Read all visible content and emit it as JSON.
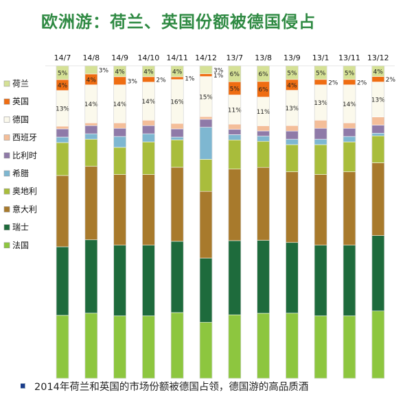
{
  "title": "欧洲游：荷兰、英国份额被德国侵占",
  "footer": {
    "bullet_icon": "square-bullet-icon",
    "text": "2014年荷兰和英国的市场份额被德国占领，德国游的高品质酒"
  },
  "chart_data": {
    "type": "bar",
    "stacked": true,
    "percent_stacked": true,
    "categories": [
      "14/7",
      "14/8",
      "14/9",
      "14/10",
      "14/11",
      "14/12",
      "13/7",
      "13/8",
      "13/9",
      "13/1",
      "13/11",
      "13/12"
    ],
    "legend_position": "left",
    "series": [
      {
        "name": "法国",
        "color": "#8dc63f",
        "values": [
          23,
          24,
          23,
          23,
          24,
          21,
          24,
          25,
          24,
          23,
          23,
          25
        ]
      },
      {
        "name": "瑞士",
        "color": "#1e6b3c",
        "values": [
          25,
          27,
          26,
          26,
          26,
          24,
          28,
          28,
          26,
          26,
          26,
          28
        ]
      },
      {
        "name": "意大利",
        "color": "#a87a2c",
        "values": [
          26,
          27,
          26,
          26,
          27,
          25,
          27,
          28,
          26,
          26,
          27,
          27
        ]
      },
      {
        "name": "奥地利",
        "color": "#a9bd3c",
        "values": [
          12,
          10,
          10,
          12,
          10,
          12,
          11,
          10,
          10,
          11,
          11,
          10
        ]
      },
      {
        "name": "希腊",
        "color": "#7eb7d1",
        "values": [
          2,
          2,
          4,
          3,
          1,
          12,
          2,
          2,
          2,
          2,
          2,
          1
        ]
      },
      {
        "name": "比利时",
        "color": "#8f7aa8",
        "values": [
          3,
          3,
          3,
          3,
          3,
          3,
          2,
          2,
          3,
          4,
          3,
          3
        ]
      },
      {
        "name": "西班牙",
        "color": "#f4be99",
        "values": [
          1,
          1,
          2,
          2,
          2,
          1,
          2,
          2,
          2,
          3,
          2,
          3
        ]
      },
      {
        "name": "德国",
        "color": "#fbf9ec",
        "values": [
          13,
          14,
          14,
          14,
          16,
          15,
          11,
          11,
          13,
          13,
          14,
          13
        ]
      },
      {
        "name": "英国",
        "color": "#ef6d12",
        "values": [
          4,
          4,
          3,
          2,
          1,
          1,
          5,
          6,
          4,
          2,
          2,
          2
        ]
      },
      {
        "name": "荷兰",
        "color": "#d5e196",
        "values": [
          5,
          3,
          4,
          4,
          4,
          3,
          6,
          6,
          5,
          5,
          5,
          4
        ]
      }
    ],
    "data_labels": {
      "荷兰": [
        "5%",
        "3%",
        "4%",
        "4%",
        "4%",
        "3%",
        "6%",
        "6%",
        "5%",
        "5%",
        "5%",
        "4%"
      ],
      "英国": [
        "4%",
        "4%",
        "3%",
        "2%",
        "1%",
        "1%",
        "5%",
        "6%",
        "4%",
        "2%",
        "2%",
        "2%"
      ],
      "德国": [
        "13%",
        "14%",
        "14%",
        "14%",
        "16%",
        "15%",
        "11%",
        "11%",
        "13%",
        "13%",
        "14%",
        "13%"
      ]
    }
  }
}
